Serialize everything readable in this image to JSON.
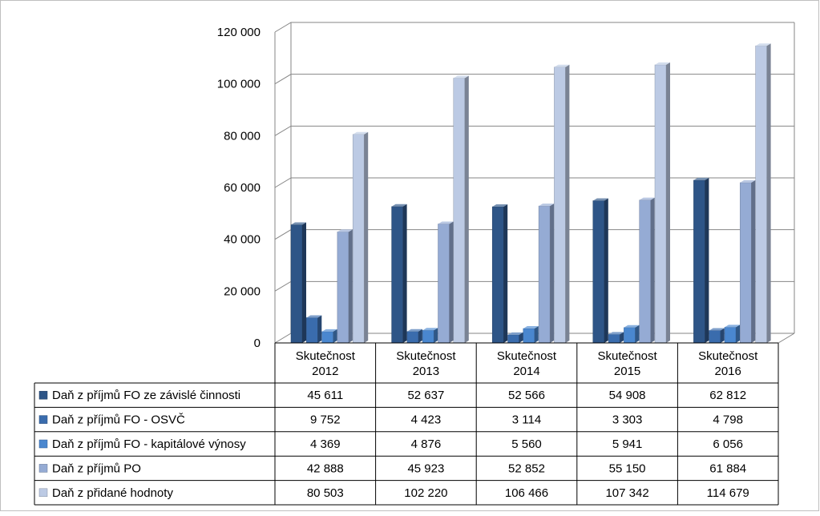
{
  "chart_data": {
    "type": "bar",
    "style": "3d-clustered-column-with-data-table",
    "categories": [
      [
        "Skutečnost",
        "2012"
      ],
      [
        "Skutečnost",
        "2013"
      ],
      [
        "Skutečnost",
        "2014"
      ],
      [
        "Skutečnost",
        "2015"
      ],
      [
        "Skutečnost",
        "2016"
      ]
    ],
    "series": [
      {
        "name": "Daň z příjmů FO ze závislé činnosti",
        "color": "#2E5587",
        "values": [
          45611,
          52637,
          52566,
          54908,
          62812
        ],
        "labels": [
          "45 611",
          "52 637",
          "52 566",
          "54 908",
          "62 812"
        ]
      },
      {
        "name": "Daň z příjmů FO - OSVČ",
        "color": "#3A6CAD",
        "values": [
          9752,
          4423,
          3114,
          3303,
          4798
        ],
        "labels": [
          "9 752",
          "4 423",
          "3 114",
          "3 303",
          "4 798"
        ]
      },
      {
        "name": "Daň z příjmů FO - kapitálové výnosy",
        "color": "#4A87CF",
        "values": [
          4369,
          4876,
          5560,
          5941,
          6056
        ],
        "labels": [
          "4 369",
          "4 876",
          "5 560",
          "5 941",
          "6 056"
        ]
      },
      {
        "name": "Daň z příjmů PO",
        "color": "#95ABD4",
        "values": [
          42888,
          45923,
          52852,
          55150,
          61884
        ],
        "labels": [
          "42 888",
          "45 923",
          "52 852",
          "55 150",
          "61 884"
        ]
      },
      {
        "name": "Daň z přidané hodnoty",
        "color": "#BCCAE4",
        "values": [
          80503,
          102220,
          106466,
          107342,
          114679
        ],
        "labels": [
          "80 503",
          "102 220",
          "106 466",
          "107 342",
          "114 679"
        ]
      }
    ],
    "y_ticks": [
      {
        "value": 0,
        "label": "0"
      },
      {
        "value": 20000,
        "label": "20 000"
      },
      {
        "value": 40000,
        "label": "40 000"
      },
      {
        "value": 60000,
        "label": "60 000"
      },
      {
        "value": 80000,
        "label": "80 000"
      },
      {
        "value": 100000,
        "label": "100 000"
      },
      {
        "value": 120000,
        "label": "120 000"
      }
    ],
    "ylim": [
      0,
      120000
    ],
    "grid": true,
    "legend": "data-table",
    "title": "",
    "xlabel": "",
    "ylabel": ""
  }
}
